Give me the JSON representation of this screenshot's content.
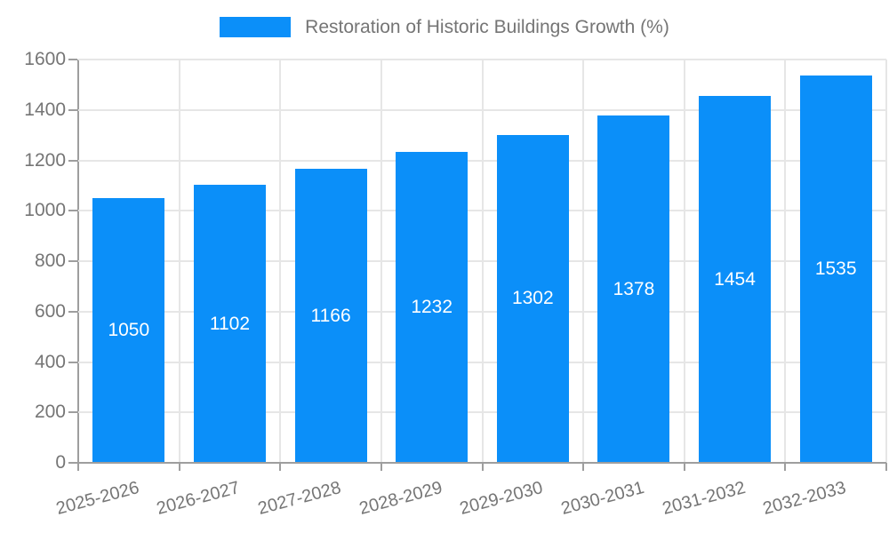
{
  "chart_data": {
    "type": "bar",
    "title": "Restoration of Historic Buildings Growth (%)",
    "categories": [
      "2025-2026",
      "2026-2027",
      "2027-2028",
      "2028-2029",
      "2029-2030",
      "2030-2031",
      "2031-2032",
      "2032-2033"
    ],
    "series": [
      {
        "name": "Restoration of Historic Buildings Growth (%)",
        "values": [
          1050,
          1102,
          1166,
          1232,
          1302,
          1378,
          1454,
          1535
        ]
      }
    ],
    "xlabel": "",
    "ylabel": "",
    "ylim": [
      0,
      1600
    ],
    "yticks": [
      0,
      200,
      400,
      600,
      800,
      1000,
      1200,
      1400,
      1600
    ],
    "grid": true,
    "legend_position": "top",
    "bar_labels_inside": true,
    "colors": {
      "bar": "#0b8ff9",
      "bar_value_text": "#ffffff",
      "axis_text": "#757575",
      "legend_text": "#757575",
      "gridline": "#e6e6e6",
      "axis_line": "#9e9e9e",
      "background": "#ffffff"
    }
  },
  "legend": {
    "label": "Restoration of Historic Buildings Growth (%)"
  }
}
